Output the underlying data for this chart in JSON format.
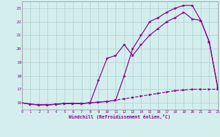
{
  "bg_color": "#d4eeee",
  "grid_color": "#aacccc",
  "line_color": "#880088",
  "xlim": [
    0,
    23
  ],
  "ylim": [
    15.5,
    23.5
  ],
  "xticks": [
    0,
    1,
    2,
    3,
    4,
    5,
    6,
    7,
    8,
    9,
    10,
    11,
    12,
    13,
    14,
    15,
    16,
    17,
    18,
    19,
    20,
    21,
    22,
    23
  ],
  "yticks": [
    16,
    17,
    18,
    19,
    20,
    21,
    22,
    23
  ],
  "xlabel": "Windchill (Refroidissement éolien,°C)",
  "series1_x": [
    0,
    1,
    2,
    3,
    4,
    5,
    6,
    7,
    8,
    9,
    10,
    11,
    12,
    13,
    14,
    15,
    16,
    17,
    18,
    19,
    20,
    21,
    22,
    23
  ],
  "series1_y": [
    16.0,
    15.9,
    15.85,
    15.85,
    15.9,
    15.95,
    15.95,
    15.95,
    16.0,
    16.05,
    16.1,
    16.2,
    16.3,
    16.4,
    16.5,
    16.6,
    16.7,
    16.8,
    16.9,
    16.95,
    17.0,
    17.0,
    17.0,
    17.0
  ],
  "series2_x": [
    0,
    1,
    2,
    3,
    4,
    5,
    6,
    7,
    8,
    9,
    10,
    11,
    12,
    13,
    14,
    15,
    16,
    17,
    18,
    19,
    20,
    21,
    22,
    23
  ],
  "series2_y": [
    16.0,
    15.9,
    15.85,
    15.85,
    15.9,
    15.95,
    15.95,
    15.95,
    16.0,
    17.7,
    19.3,
    19.5,
    20.3,
    19.5,
    20.3,
    21.0,
    21.5,
    22.0,
    22.3,
    22.7,
    22.2,
    22.1,
    20.5,
    17.1
  ],
  "series3_x": [
    0,
    1,
    2,
    3,
    4,
    5,
    6,
    7,
    8,
    9,
    10,
    11,
    12,
    13,
    14,
    15,
    16,
    17,
    18,
    19,
    20,
    21,
    22,
    23
  ],
  "series3_y": [
    16.0,
    15.9,
    15.85,
    15.85,
    15.9,
    15.95,
    15.95,
    15.95,
    16.0,
    16.05,
    16.1,
    16.2,
    18.0,
    20.0,
    21.0,
    22.0,
    22.3,
    22.7,
    23.0,
    23.2,
    23.2,
    22.1,
    20.5,
    17.1
  ]
}
